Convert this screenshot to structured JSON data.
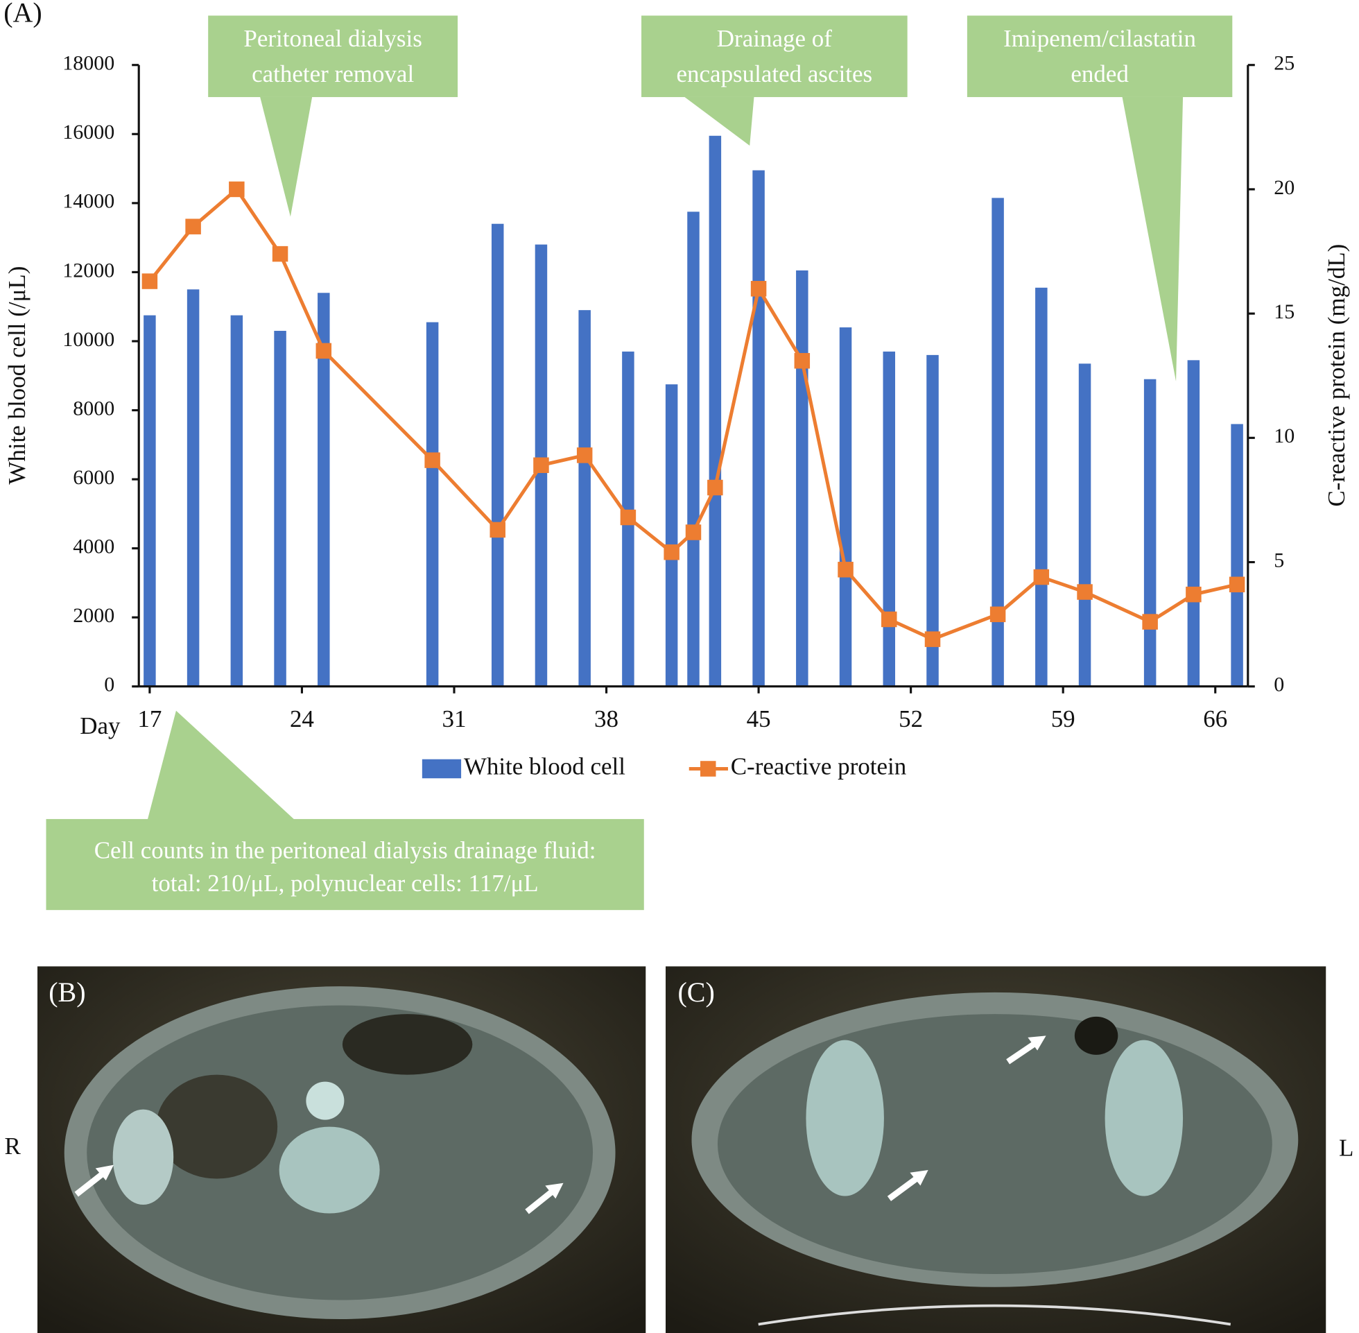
{
  "chart_data": {
    "type": "bar",
    "title": "(A)",
    "xlabel": "Day",
    "ylabel": "White blood cell (/μL)",
    "y2label": "C-reactive protein (mg/dL)",
    "x": [
      17,
      19,
      21,
      23,
      25,
      30,
      33,
      35,
      37,
      39,
      41,
      42,
      43,
      45,
      47,
      49,
      51,
      53,
      56,
      58,
      60,
      63,
      65,
      67
    ],
    "xlim": [
      16.5,
      67.5
    ],
    "xticks": [
      17,
      24,
      31,
      38,
      45,
      52,
      59,
      66
    ],
    "ylim": [
      0,
      18000
    ],
    "yticks": [
      0,
      2000,
      4000,
      6000,
      8000,
      10000,
      12000,
      14000,
      16000,
      18000
    ],
    "y2lim": [
      0,
      25
    ],
    "y2ticks": [
      0,
      5,
      10,
      15,
      20,
      25
    ],
    "series": [
      {
        "name": "White blood cell",
        "color": "#4472c4",
        "values": [
          10750,
          11500,
          10750,
          10300,
          11400,
          10550,
          13400,
          12800,
          10900,
          9700,
          8750,
          13750,
          15950,
          14950,
          12050,
          10400,
          9700,
          9600,
          14150,
          11550,
          9350,
          8900,
          9450,
          7600
        ]
      },
      {
        "name": "C-reactive protein",
        "color": "#ed7d31",
        "type": "line",
        "axis": "y2",
        "marker": "square",
        "values": [
          16.3,
          18.5,
          20,
          17.4,
          13.5,
          9.1,
          6.3,
          8.9,
          9.3,
          6.8,
          5.4,
          6.2,
          8.0,
          16.0,
          13.1,
          4.7,
          2.7,
          1.9,
          2.9,
          4.4,
          3.8,
          2.6,
          3.7,
          4.1
        ]
      }
    ],
    "annotations": [
      {
        "lines": [
          "Peritoneal dialysis",
          "catheter removal"
        ]
      },
      {
        "lines": [
          "Drainage of",
          "encapsulated ascites"
        ]
      },
      {
        "lines": [
          "Imipenem/cilastatin",
          "ended"
        ]
      },
      {
        "lines": [
          "Cell counts in the peritoneal dialysis drainage fluid:",
          "total: 210/μL, polynuclear cells: 117/μL"
        ]
      }
    ]
  },
  "image_panels": {
    "labels": [
      "(B)",
      "(C)"
    ],
    "side_left": "R",
    "side_right": "L"
  }
}
